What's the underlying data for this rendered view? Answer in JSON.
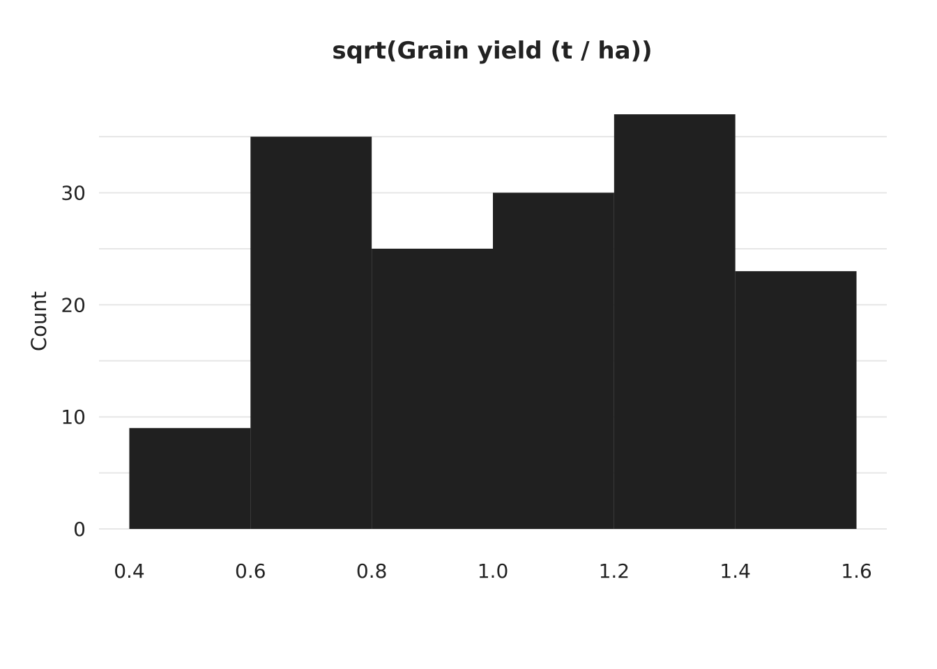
{
  "chart_data": {
    "type": "bar",
    "title": "sqrt(Grain yield (t / ha))",
    "xlabel": "",
    "ylabel": "Count",
    "bins": [
      {
        "x0": 0.4,
        "x1": 0.6,
        "count": 9
      },
      {
        "x0": 0.6,
        "x1": 0.8,
        "count": 35
      },
      {
        "x0": 0.8,
        "x1": 1.0,
        "count": 25
      },
      {
        "x0": 1.0,
        "x1": 1.2,
        "count": 30
      },
      {
        "x0": 1.2,
        "x1": 1.4,
        "count": 37
      },
      {
        "x0": 1.4,
        "x1": 1.6,
        "count": 23
      }
    ],
    "xlim": [
      0.35,
      1.65
    ],
    "ylim": [
      0,
      37
    ],
    "x_ticks": [
      0.4,
      0.6,
      0.8,
      1.0,
      1.2,
      1.4,
      1.6
    ],
    "x_tick_labels": [
      "0.4",
      "0.6",
      "0.8",
      "1.0",
      "1.2",
      "1.4",
      "1.6"
    ],
    "y_ticks": [
      0,
      10,
      20,
      30
    ],
    "y_tick_labels": [
      "0",
      "10",
      "20",
      "30"
    ],
    "y_gridlines": [
      0,
      5,
      10,
      15,
      20,
      25,
      30,
      35
    ],
    "grid": true,
    "legend": "none",
    "bar_color": "#202020",
    "grid_color": "#e6e6e6"
  }
}
